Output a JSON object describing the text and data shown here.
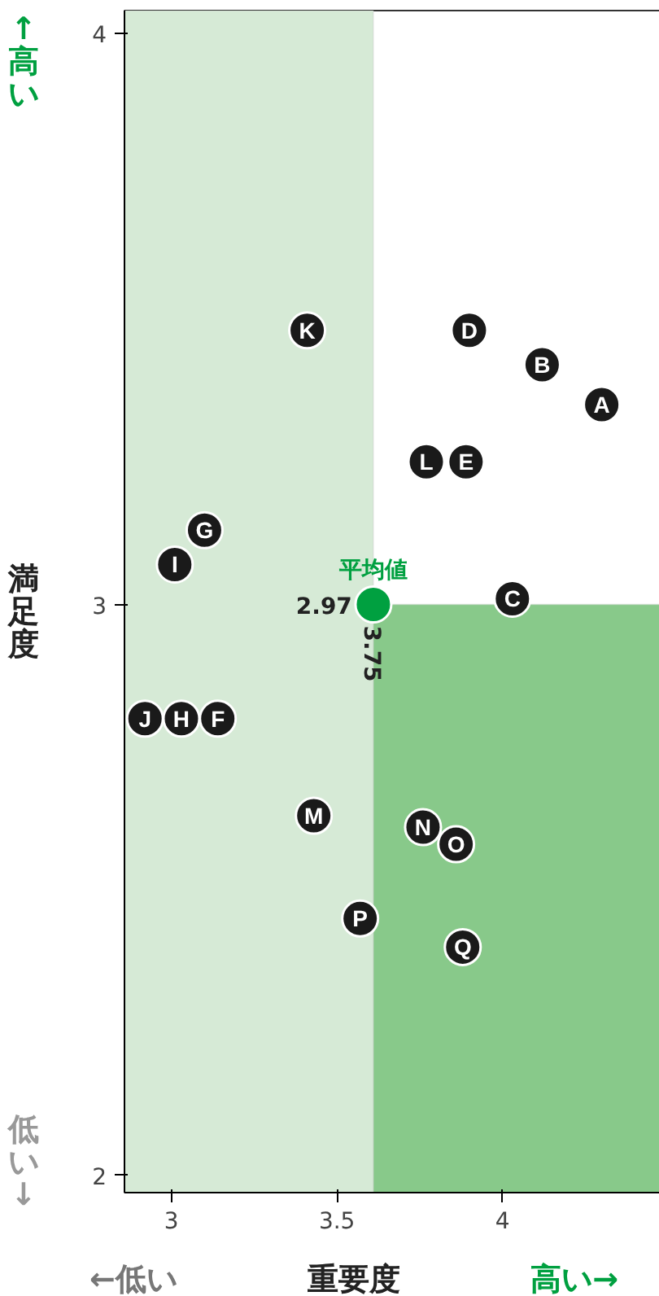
{
  "chart_data": {
    "type": "scatter",
    "xlabel": "重要度",
    "ylabel": "満足度",
    "xlim": [
      2.858,
      4.5
    ],
    "ylim": [
      1.97,
      4.04
    ],
    "xticks": [
      3,
      3.5,
      4
    ],
    "yticks": [
      2,
      3,
      4
    ],
    "grid": false,
    "marker": "circle",
    "bands": [
      {
        "axis": "y",
        "from": 1.97,
        "to": 3,
        "color": "#88c98a"
      },
      {
        "axis": "x",
        "from": 2.858,
        "to": 3.61,
        "color": "#d6ead6"
      }
    ],
    "series": [
      {
        "color": "#1a1a1a",
        "x": [
          4.3,
          4.12,
          4.03,
          3.9,
          3.89,
          3.14,
          3.1,
          3.03,
          3.01,
          2.92,
          3.41,
          3.77,
          3.43,
          3.76,
          3.86,
          3.57,
          3.88
        ],
        "values": [
          3.35,
          3.42,
          3.01,
          3.48,
          3.25,
          2.8,
          3.13,
          2.8,
          3.07,
          2.8,
          3.48,
          3.25,
          2.63,
          2.61,
          2.58,
          2.45,
          2.4
        ],
        "value_labels": [
          "A",
          "B",
          "C",
          "D",
          "E",
          "F",
          "G",
          "H",
          "I",
          "J",
          "K",
          "L",
          "M",
          "N",
          "O",
          "P",
          "Q"
        ]
      },
      {
        "color": "#00a040",
        "x": [
          3.61
        ],
        "values": [
          3.0
        ]
      }
    ],
    "annotations": [
      "平均値",
      "2.97",
      "3.75",
      "↑高い",
      "低い↓",
      "←低い",
      "高い→"
    ]
  }
}
